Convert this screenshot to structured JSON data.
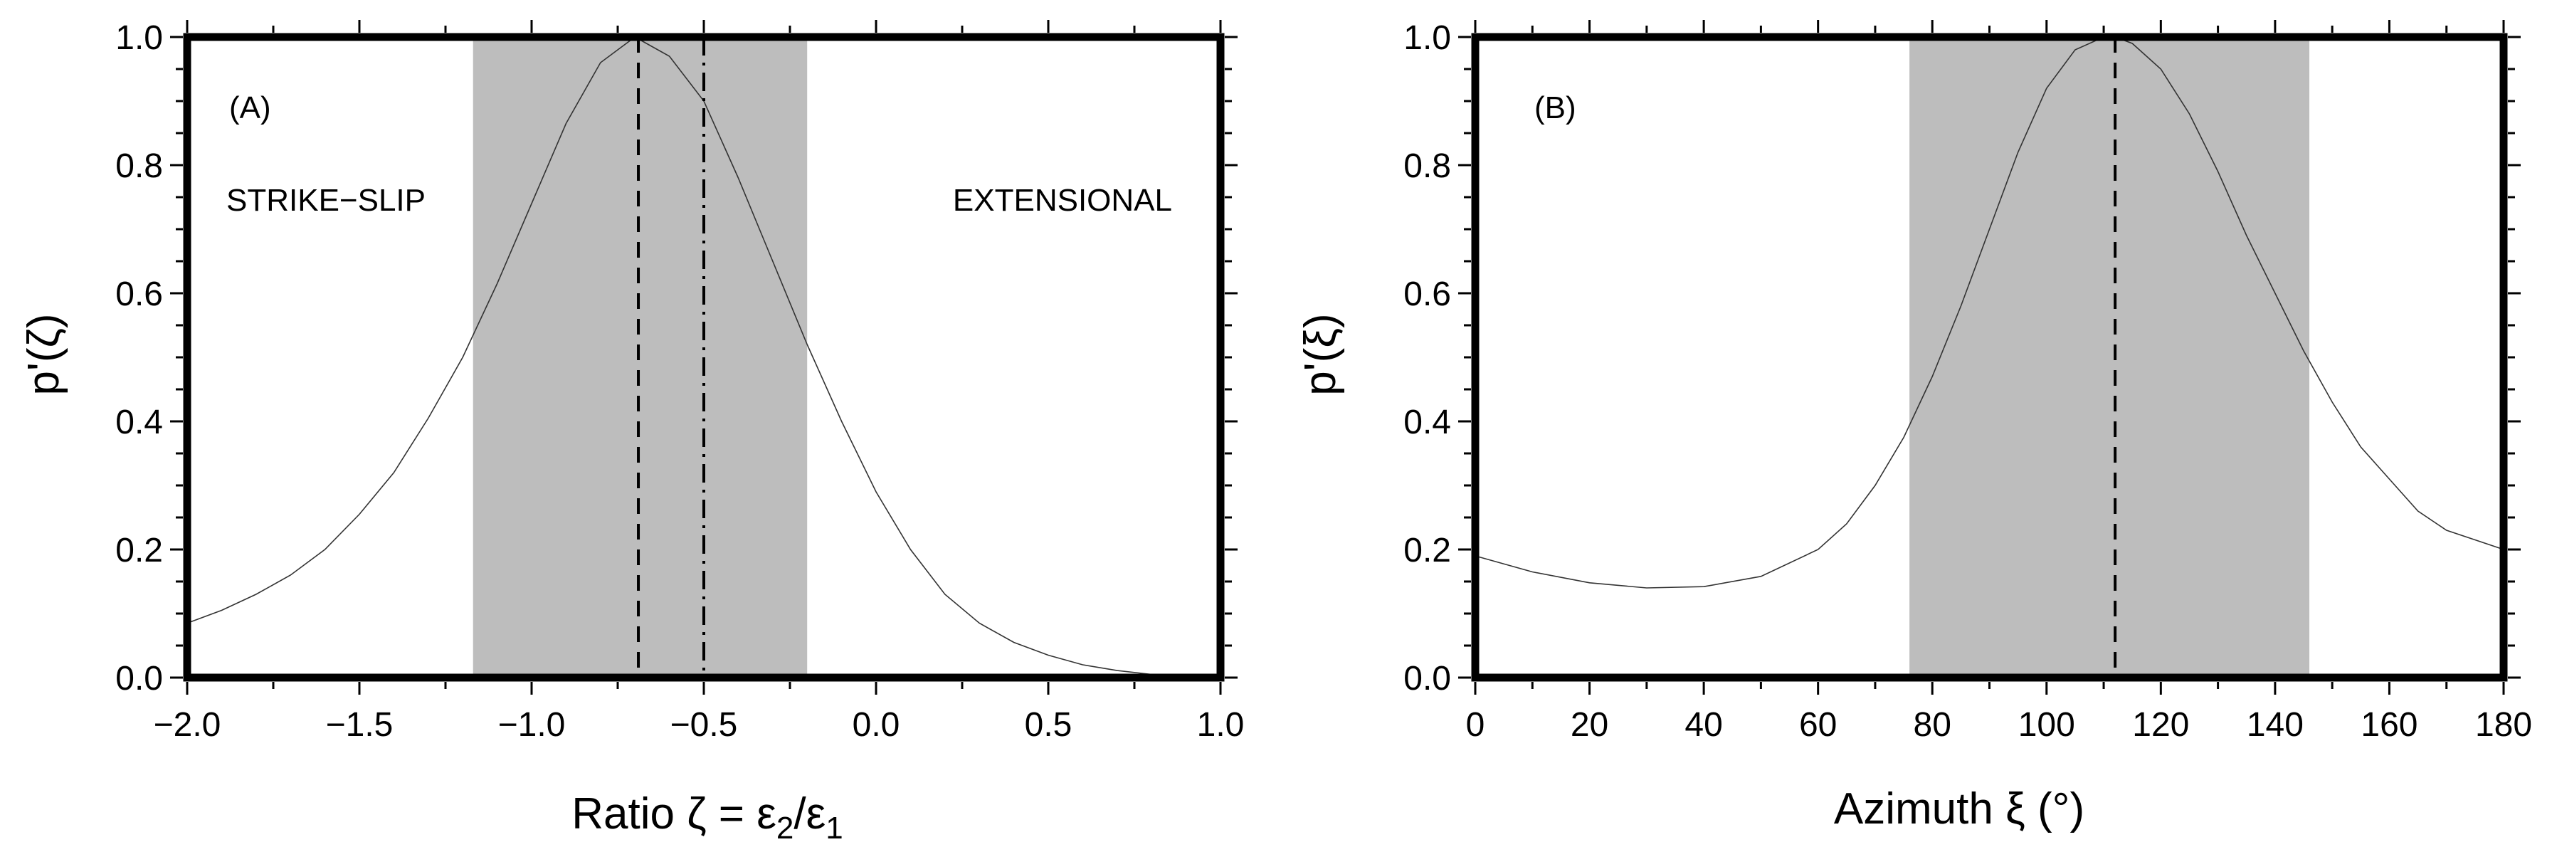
{
  "chart_data": [
    {
      "type": "line",
      "panel_label": "(A)",
      "xlabel_prefix": "Ratio ζ = ε",
      "xlabel_sub1": "2",
      "xlabel_slash": "/ε",
      "xlabel_sub2": "1",
      "ylabel": "p'(ζ)",
      "xlim": [
        -2.0,
        1.0
      ],
      "ylim": [
        0.0,
        1.0
      ],
      "x_ticks": [
        -2.0,
        -1.5,
        -1.0,
        -0.5,
        0.0,
        0.5,
        1.0
      ],
      "x_tick_labels": [
        "−2.0",
        "−1.5",
        "−1.0",
        "−0.5",
        "0.0",
        "0.5",
        "1.0"
      ],
      "y_ticks": [
        0.0,
        0.2,
        0.4,
        0.6,
        0.8,
        1.0
      ],
      "y_tick_labels": [
        "0.0",
        "0.2",
        "0.4",
        "0.6",
        "0.8",
        "1.0"
      ],
      "shaded_interval": [
        -1.17,
        -0.2
      ],
      "dashed_line_x": -0.69,
      "dashdot_line_x": -0.5,
      "annotations": [
        {
          "text": "STRIKE−SLIP",
          "position": "upper-left"
        },
        {
          "text": "EXTENSIONAL",
          "position": "upper-right"
        }
      ],
      "series": [
        {
          "name": "p'(ζ)",
          "x": [
            -2.0,
            -1.9,
            -1.8,
            -1.7,
            -1.6,
            -1.5,
            -1.4,
            -1.3,
            -1.2,
            -1.1,
            -1.0,
            -0.9,
            -0.8,
            -0.7,
            -0.6,
            -0.5,
            -0.4,
            -0.3,
            -0.2,
            -0.1,
            0.0,
            0.1,
            0.2,
            0.3,
            0.4,
            0.5,
            0.6,
            0.7,
            0.8,
            0.9,
            1.0
          ],
          "y": [
            0.085,
            0.105,
            0.13,
            0.16,
            0.2,
            0.255,
            0.32,
            0.405,
            0.5,
            0.615,
            0.74,
            0.865,
            0.96,
            1.0,
            0.97,
            0.9,
            0.78,
            0.65,
            0.52,
            0.4,
            0.29,
            0.2,
            0.13,
            0.085,
            0.055,
            0.035,
            0.02,
            0.011,
            0.005,
            0.002,
            0.0
          ]
        }
      ]
    },
    {
      "type": "line",
      "panel_label": "(B)",
      "xlabel": "Azimuth ξ (°)",
      "ylabel": "p'(ξ)",
      "xlim": [
        0,
        180
      ],
      "ylim": [
        0.0,
        1.0
      ],
      "x_ticks": [
        0,
        20,
        40,
        60,
        80,
        100,
        120,
        140,
        160,
        180
      ],
      "x_tick_labels": [
        "0",
        "20",
        "40",
        "60",
        "80",
        "100",
        "120",
        "140",
        "160",
        "180"
      ],
      "y_ticks": [
        0.0,
        0.2,
        0.4,
        0.6,
        0.8,
        1.0
      ],
      "y_tick_labels": [
        "0.0",
        "0.2",
        "0.4",
        "0.6",
        "0.8",
        "1.0"
      ],
      "shaded_interval": [
        76,
        146
      ],
      "dashed_line_x": 112,
      "series": [
        {
          "name": "p'(ξ)",
          "x": [
            0,
            10,
            20,
            30,
            40,
            50,
            60,
            65,
            70,
            75,
            80,
            85,
            90,
            95,
            100,
            105,
            110,
            112,
            115,
            120,
            125,
            130,
            135,
            140,
            145,
            150,
            155,
            160,
            165,
            170,
            175,
            180
          ],
          "y": [
            0.19,
            0.165,
            0.148,
            0.14,
            0.142,
            0.158,
            0.2,
            0.24,
            0.3,
            0.375,
            0.47,
            0.58,
            0.7,
            0.82,
            0.92,
            0.98,
            1.0,
            1.0,
            0.99,
            0.95,
            0.88,
            0.79,
            0.69,
            0.6,
            0.51,
            0.43,
            0.36,
            0.31,
            0.26,
            0.23,
            0.215,
            0.2
          ]
        }
      ]
    }
  ]
}
